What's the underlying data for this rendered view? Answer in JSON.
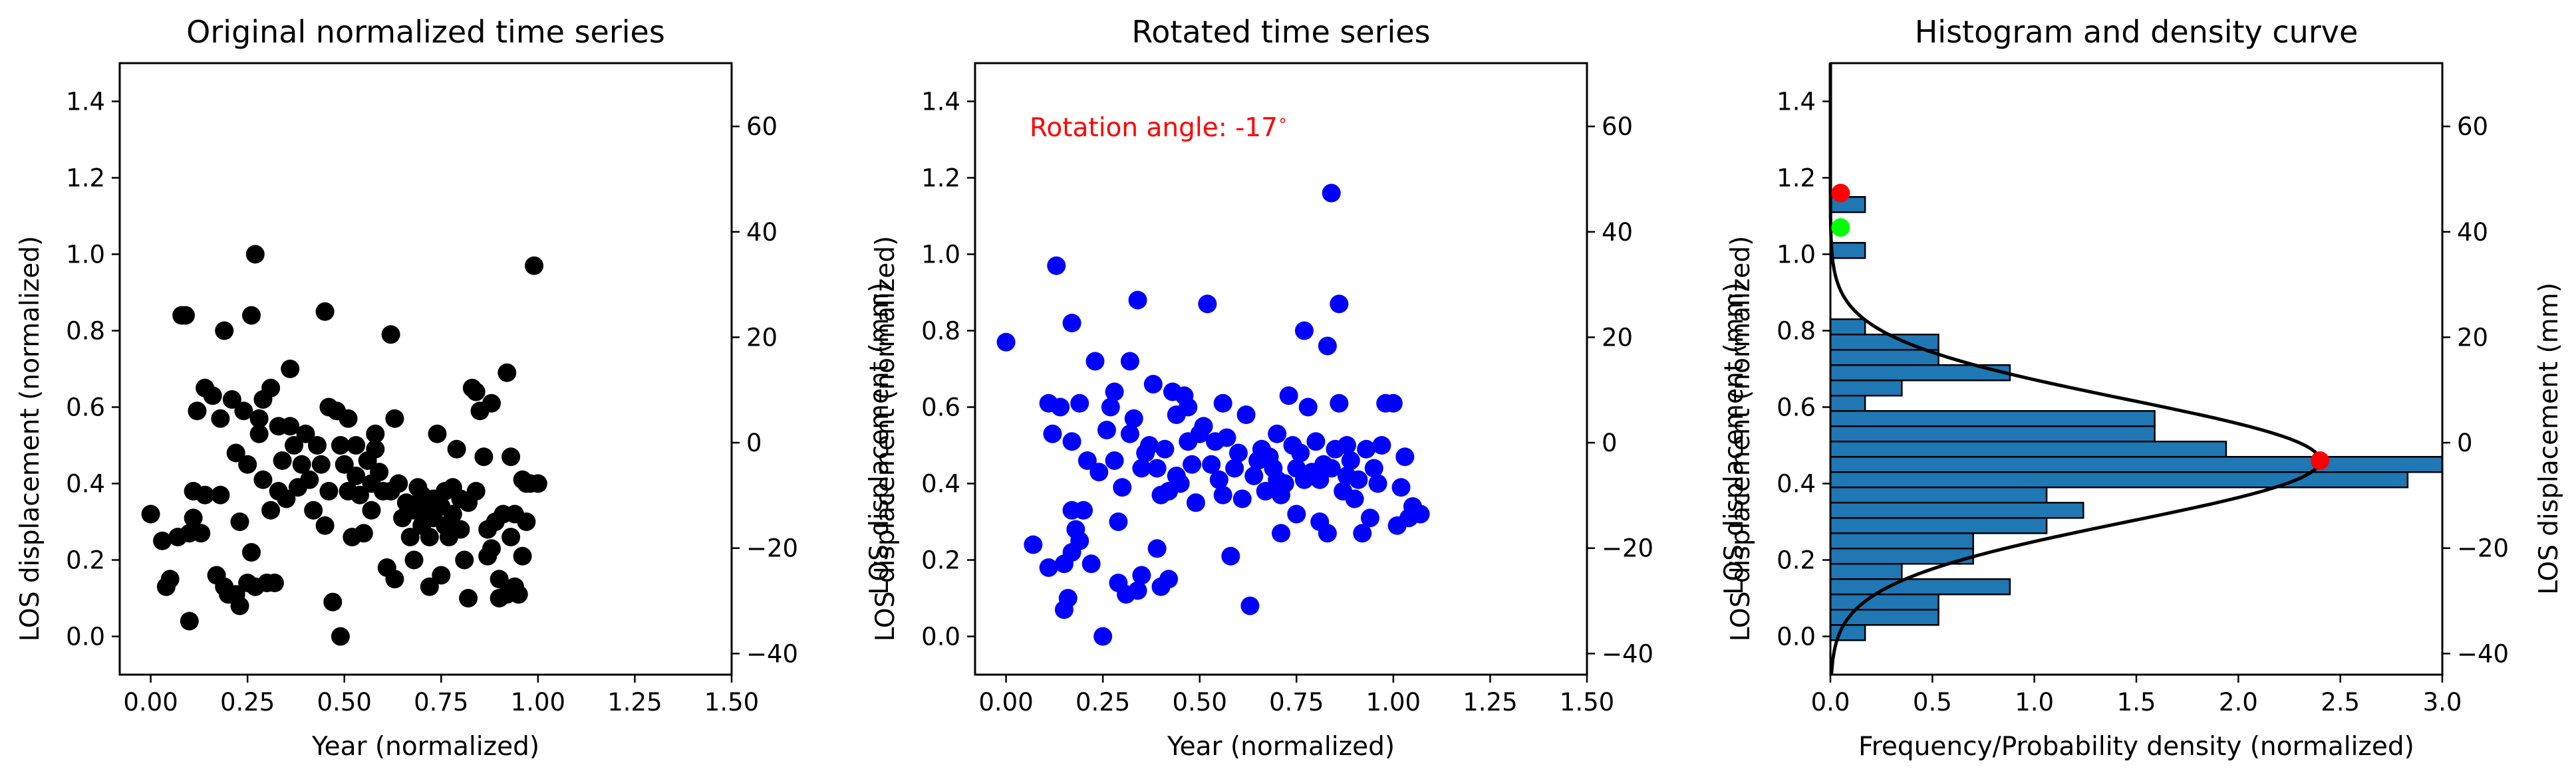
{
  "colors": {
    "scatter1": "#000000",
    "scatter2": "#0000ff",
    "bars": "#1f77b4",
    "bar_edge": "#000000",
    "density": "#000000",
    "marker_red": "#ff0000",
    "marker_green": "#00ff00",
    "annotation": "#ff0000"
  },
  "chart_data": [
    {
      "type": "scatter",
      "title": "Original normalized time series",
      "xlabel": "Year (normalized)",
      "ylabel": "LOS displacement (normalized)",
      "ylabel_right": "LOS displacement (mm)",
      "xlim": [
        -0.08,
        1.5
      ],
      "ylim": [
        -0.1,
        1.5
      ],
      "y2lim": [
        -44,
        72
      ],
      "x_ticks": [
        "0.00",
        "0.25",
        "0.50",
        "0.75",
        "1.00",
        "1.25",
        "1.50"
      ],
      "y_ticks": [
        "0.0",
        "0.2",
        "0.4",
        "0.6",
        "0.8",
        "1.0",
        "1.2",
        "1.4"
      ],
      "y2_ticks": [
        "−40",
        "−20",
        "0",
        "20",
        "40",
        "60"
      ],
      "points": [
        [
          0.0,
          0.32
        ],
        [
          0.03,
          0.25
        ],
        [
          0.04,
          0.13
        ],
        [
          0.05,
          0.15
        ],
        [
          0.07,
          0.26
        ],
        [
          0.08,
          0.84
        ],
        [
          0.09,
          0.84
        ],
        [
          0.1,
          0.27
        ],
        [
          0.1,
          0.04
        ],
        [
          0.11,
          0.38
        ],
        [
          0.11,
          0.31
        ],
        [
          0.12,
          0.59
        ],
        [
          0.13,
          0.27
        ],
        [
          0.14,
          0.37
        ],
        [
          0.14,
          0.65
        ],
        [
          0.16,
          0.63
        ],
        [
          0.17,
          0.16
        ],
        [
          0.18,
          0.37
        ],
        [
          0.18,
          0.57
        ],
        [
          0.19,
          0.8
        ],
        [
          0.19,
          0.13
        ],
        [
          0.2,
          0.11
        ],
        [
          0.21,
          0.62
        ],
        [
          0.22,
          0.48
        ],
        [
          0.22,
          0.11
        ],
        [
          0.23,
          0.3
        ],
        [
          0.23,
          0.08
        ],
        [
          0.24,
          0.59
        ],
        [
          0.25,
          0.14
        ],
        [
          0.25,
          0.45
        ],
        [
          0.26,
          0.84
        ],
        [
          0.26,
          0.22
        ],
        [
          0.27,
          1.0
        ],
        [
          0.27,
          0.13
        ],
        [
          0.28,
          0.57
        ],
        [
          0.28,
          0.53
        ],
        [
          0.29,
          0.62
        ],
        [
          0.29,
          0.41
        ],
        [
          0.3,
          0.14
        ],
        [
          0.31,
          0.65
        ],
        [
          0.31,
          0.33
        ],
        [
          0.32,
          0.14
        ],
        [
          0.33,
          0.55
        ],
        [
          0.33,
          0.38
        ],
        [
          0.34,
          0.46
        ],
        [
          0.35,
          0.36
        ],
        [
          0.36,
          0.55
        ],
        [
          0.36,
          0.7
        ],
        [
          0.37,
          0.5
        ],
        [
          0.38,
          0.39
        ],
        [
          0.39,
          0.45
        ],
        [
          0.4,
          0.53
        ],
        [
          0.41,
          0.41
        ],
        [
          0.42,
          0.33
        ],
        [
          0.43,
          0.5
        ],
        [
          0.44,
          0.45
        ],
        [
          0.45,
          0.85
        ],
        [
          0.45,
          0.29
        ],
        [
          0.46,
          0.6
        ],
        [
          0.46,
          0.38
        ],
        [
          0.47,
          0.09
        ],
        [
          0.48,
          0.59
        ],
        [
          0.49,
          0.5
        ],
        [
          0.49,
          0.0
        ],
        [
          0.5,
          0.45
        ],
        [
          0.51,
          0.57
        ],
        [
          0.51,
          0.38
        ],
        [
          0.52,
          0.26
        ],
        [
          0.53,
          0.42
        ],
        [
          0.53,
          0.5
        ],
        [
          0.54,
          0.37
        ],
        [
          0.55,
          0.27
        ],
        [
          0.56,
          0.46
        ],
        [
          0.57,
          0.33
        ],
        [
          0.57,
          0.4
        ],
        [
          0.58,
          0.49
        ],
        [
          0.58,
          0.53
        ],
        [
          0.59,
          0.43
        ],
        [
          0.6,
          0.38
        ],
        [
          0.61,
          0.18
        ],
        [
          0.62,
          0.79
        ],
        [
          0.62,
          0.38
        ],
        [
          0.63,
          0.57
        ],
        [
          0.63,
          0.15
        ],
        [
          0.64,
          0.4
        ],
        [
          0.65,
          0.31
        ],
        [
          0.66,
          0.35
        ],
        [
          0.67,
          0.26
        ],
        [
          0.68,
          0.2
        ],
        [
          0.68,
          0.33
        ],
        [
          0.69,
          0.39
        ],
        [
          0.7,
          0.29
        ],
        [
          0.7,
          0.37
        ],
        [
          0.71,
          0.33
        ],
        [
          0.72,
          0.26
        ],
        [
          0.72,
          0.13
        ],
        [
          0.73,
          0.36
        ],
        [
          0.73,
          0.31
        ],
        [
          0.74,
          0.53
        ],
        [
          0.75,
          0.34
        ],
        [
          0.75,
          0.16
        ],
        [
          0.76,
          0.38
        ],
        [
          0.76,
          0.29
        ],
        [
          0.77,
          0.26
        ],
        [
          0.78,
          0.39
        ],
        [
          0.78,
          0.32
        ],
        [
          0.79,
          0.49
        ],
        [
          0.8,
          0.28
        ],
        [
          0.8,
          0.36
        ],
        [
          0.81,
          0.2
        ],
        [
          0.82,
          0.35
        ],
        [
          0.82,
          0.1
        ],
        [
          0.83,
          0.65
        ],
        [
          0.84,
          0.64
        ],
        [
          0.84,
          0.38
        ],
        [
          0.85,
          0.59
        ],
        [
          0.86,
          0.47
        ],
        [
          0.87,
          0.28
        ],
        [
          0.87,
          0.21
        ],
        [
          0.88,
          0.61
        ],
        [
          0.88,
          0.23
        ],
        [
          0.89,
          0.3
        ],
        [
          0.9,
          0.15
        ],
        [
          0.9,
          0.1
        ],
        [
          0.91,
          0.32
        ],
        [
          0.92,
          0.69
        ],
        [
          0.92,
          0.11
        ],
        [
          0.93,
          0.26
        ],
        [
          0.93,
          0.47
        ],
        [
          0.94,
          0.32
        ],
        [
          0.94,
          0.13
        ],
        [
          0.95,
          0.11
        ],
        [
          0.96,
          0.41
        ],
        [
          0.96,
          0.21
        ],
        [
          0.97,
          0.3
        ],
        [
          0.97,
          0.4
        ],
        [
          0.98,
          0.4
        ],
        [
          0.99,
          0.97
        ],
        [
          1.0,
          0.4
        ]
      ]
    },
    {
      "type": "scatter",
      "title": "Rotated time series",
      "xlabel": "Year (normalized)",
      "ylabel": "LOS displacement (normalized)",
      "ylabel_right": "LOS displacement (mm)",
      "annotation": "Rotation angle: -17",
      "annotation_unit": "∘",
      "xlim": [
        -0.08,
        1.5
      ],
      "ylim": [
        -0.1,
        1.5
      ],
      "y2lim": [
        -44,
        72
      ],
      "x_ticks": [
        "0.00",
        "0.25",
        "0.50",
        "0.75",
        "1.00",
        "1.25",
        "1.50"
      ],
      "y_ticks": [
        "0.0",
        "0.2",
        "0.4",
        "0.6",
        "0.8",
        "1.0",
        "1.2",
        "1.4"
      ],
      "y2_ticks": [
        "−40",
        "−20",
        "0",
        "20",
        "40",
        "60"
      ],
      "points": [
        [
          0.0,
          0.77
        ],
        [
          0.07,
          0.24
        ],
        [
          0.11,
          0.18
        ],
        [
          0.11,
          0.61
        ],
        [
          0.12,
          0.53
        ],
        [
          0.13,
          0.97
        ],
        [
          0.14,
          0.6
        ],
        [
          0.15,
          0.19
        ],
        [
          0.15,
          0.07
        ],
        [
          0.16,
          0.1
        ],
        [
          0.17,
          0.51
        ],
        [
          0.17,
          0.22
        ],
        [
          0.17,
          0.33
        ],
        [
          0.17,
          0.82
        ],
        [
          0.18,
          0.28
        ],
        [
          0.19,
          0.25
        ],
        [
          0.19,
          0.61
        ],
        [
          0.2,
          0.33
        ],
        [
          0.21,
          0.46
        ],
        [
          0.22,
          0.19
        ],
        [
          0.23,
          0.72
        ],
        [
          0.24,
          0.43
        ],
        [
          0.25,
          0.0
        ],
        [
          0.26,
          0.54
        ],
        [
          0.27,
          0.6
        ],
        [
          0.28,
          0.64
        ],
        [
          0.28,
          0.46
        ],
        [
          0.29,
          0.14
        ],
        [
          0.29,
          0.3
        ],
        [
          0.3,
          0.39
        ],
        [
          0.31,
          0.11
        ],
        [
          0.32,
          0.72
        ],
        [
          0.32,
          0.53
        ],
        [
          0.33,
          0.57
        ],
        [
          0.34,
          0.88
        ],
        [
          0.34,
          0.12
        ],
        [
          0.35,
          0.44
        ],
        [
          0.35,
          0.16
        ],
        [
          0.36,
          0.48
        ],
        [
          0.37,
          0.5
        ],
        [
          0.38,
          0.66
        ],
        [
          0.39,
          0.44
        ],
        [
          0.39,
          0.23
        ],
        [
          0.4,
          0.37
        ],
        [
          0.4,
          0.13
        ],
        [
          0.41,
          0.49
        ],
        [
          0.42,
          0.38
        ],
        [
          0.42,
          0.15
        ],
        [
          0.43,
          0.64
        ],
        [
          0.44,
          0.42
        ],
        [
          0.44,
          0.58
        ],
        [
          0.45,
          0.4
        ],
        [
          0.46,
          0.63
        ],
        [
          0.47,
          0.51
        ],
        [
          0.47,
          0.6
        ],
        [
          0.48,
          0.45
        ],
        [
          0.49,
          0.35
        ],
        [
          0.5,
          0.53
        ],
        [
          0.51,
          0.55
        ],
        [
          0.52,
          0.87
        ],
        [
          0.53,
          0.45
        ],
        [
          0.54,
          0.51
        ],
        [
          0.55,
          0.41
        ],
        [
          0.56,
          0.61
        ],
        [
          0.56,
          0.37
        ],
        [
          0.57,
          0.52
        ],
        [
          0.58,
          0.21
        ],
        [
          0.59,
          0.44
        ],
        [
          0.6,
          0.48
        ],
        [
          0.61,
          0.36
        ],
        [
          0.62,
          0.58
        ],
        [
          0.63,
          0.08
        ],
        [
          0.64,
          0.42
        ],
        [
          0.65,
          0.46
        ],
        [
          0.66,
          0.49
        ],
        [
          0.67,
          0.38
        ],
        [
          0.68,
          0.47
        ],
        [
          0.69,
          0.44
        ],
        [
          0.7,
          0.53
        ],
        [
          0.7,
          0.41
        ],
        [
          0.71,
          0.37
        ],
        [
          0.71,
          0.27
        ],
        [
          0.72,
          0.4
        ],
        [
          0.73,
          0.63
        ],
        [
          0.74,
          0.5
        ],
        [
          0.75,
          0.44
        ],
        [
          0.75,
          0.32
        ],
        [
          0.76,
          0.48
        ],
        [
          0.77,
          0.8
        ],
        [
          0.77,
          0.41
        ],
        [
          0.78,
          0.6
        ],
        [
          0.79,
          0.43
        ],
        [
          0.8,
          0.51
        ],
        [
          0.81,
          0.3
        ],
        [
          0.81,
          0.41
        ],
        [
          0.82,
          0.45
        ],
        [
          0.83,
          0.27
        ],
        [
          0.83,
          0.76
        ],
        [
          0.84,
          1.16
        ],
        [
          0.84,
          0.44
        ],
        [
          0.85,
          0.49
        ],
        [
          0.86,
          0.87
        ],
        [
          0.86,
          0.61
        ],
        [
          0.87,
          0.38
        ],
        [
          0.88,
          0.42
        ],
        [
          0.88,
          0.5
        ],
        [
          0.89,
          0.46
        ],
        [
          0.9,
          0.36
        ],
        [
          0.91,
          0.41
        ],
        [
          0.92,
          0.27
        ],
        [
          0.93,
          0.49
        ],
        [
          0.94,
          0.31
        ],
        [
          0.95,
          0.44
        ],
        [
          0.96,
          0.4
        ],
        [
          0.97,
          0.5
        ],
        [
          0.98,
          0.61
        ],
        [
          1.0,
          0.61
        ],
        [
          1.01,
          0.29
        ],
        [
          1.02,
          0.39
        ],
        [
          1.03,
          0.47
        ],
        [
          1.04,
          0.31
        ],
        [
          1.05,
          0.34
        ],
        [
          1.07,
          0.32
        ]
      ]
    },
    {
      "type": "bar",
      "orientation": "horizontal",
      "title": "Histogram and density curve",
      "xlabel": "Frequency/Probability density (normalized)",
      "ylabel": "LOS displacement (normalized)",
      "ylabel_right": "LOS displacement (mm)",
      "xlim": [
        0,
        3.0
      ],
      "ylim": [
        -0.1,
        1.5
      ],
      "y2lim": [
        -44,
        72
      ],
      "x_ticks": [
        "0.0",
        "0.5",
        "1.0",
        "1.5",
        "2.0",
        "2.5",
        "3.0"
      ],
      "y_ticks": [
        "0.0",
        "0.2",
        "0.4",
        "0.6",
        "0.8",
        "1.0",
        "1.2",
        "1.4"
      ],
      "y2_ticks": [
        "−40",
        "−20",
        "0",
        "20",
        "40",
        "60"
      ],
      "bin_width": 0.04,
      "bin_start": -0.01,
      "frequencies": [
        0.17,
        0.53,
        0.53,
        0.88,
        0.35,
        0.7,
        0.7,
        1.06,
        1.24,
        1.06,
        2.83,
        3.0,
        1.94,
        1.59,
        1.59,
        0.17,
        0.35,
        0.88,
        0.53,
        0.53,
        0.17,
        0,
        0,
        0,
        0,
        0.17,
        0,
        0,
        0.17
      ],
      "density_curve": {
        "mean": 0.46,
        "peak": 2.4,
        "sigma": 0.16
      },
      "markers": [
        {
          "x": 2.4,
          "y": 0.46,
          "color": "red"
        },
        {
          "x": 0.05,
          "y": 1.16,
          "color": "red"
        },
        {
          "x": 0.05,
          "y": 1.07,
          "color": "green"
        }
      ]
    }
  ]
}
